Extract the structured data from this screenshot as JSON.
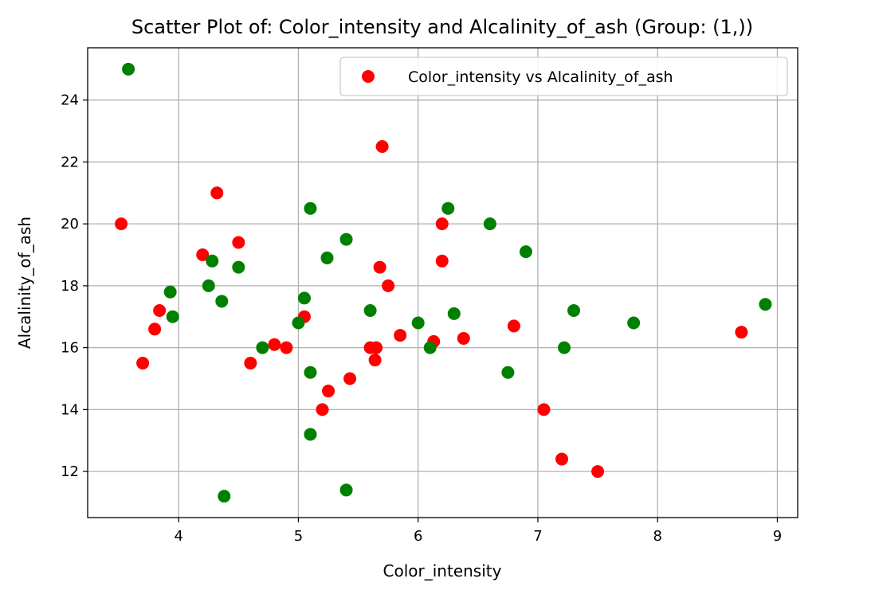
{
  "chart_data": {
    "type": "scatter",
    "title": "Scatter Plot of: Color_intensity and Alcalinity_of_ash (Group: (1,))",
    "xlabel": "Color_intensity",
    "ylabel": "Alcalinity_of_ash",
    "xlim": [
      3.24,
      9.17
    ],
    "ylim": [
      10.51,
      25.69
    ],
    "xticks": [
      4,
      5,
      6,
      7,
      8,
      9
    ],
    "yticks": [
      12,
      14,
      16,
      18,
      20,
      22,
      24
    ],
    "grid": true,
    "legend": {
      "placement": "top-right",
      "entries": [
        {
          "label": "Color_intensity vs Alcalinity_of_ash",
          "color": "#ff0000"
        }
      ]
    },
    "series": [
      {
        "color": "#ff0000",
        "points": [
          [
            3.52,
            20.0
          ],
          [
            3.7,
            15.5
          ],
          [
            3.8,
            16.6
          ],
          [
            3.84,
            17.2
          ],
          [
            4.2,
            19.0
          ],
          [
            4.32,
            21.0
          ],
          [
            4.5,
            19.4
          ],
          [
            4.6,
            15.5
          ],
          [
            4.8,
            16.1
          ],
          [
            4.9,
            16.0
          ],
          [
            5.05,
            17.0
          ],
          [
            5.2,
            14.0
          ],
          [
            5.25,
            14.6
          ],
          [
            5.43,
            15.0
          ],
          [
            5.6,
            16.0
          ],
          [
            5.64,
            15.6
          ],
          [
            5.65,
            16.0
          ],
          [
            5.68,
            18.6
          ],
          [
            5.7,
            22.5
          ],
          [
            5.75,
            18.0
          ],
          [
            5.85,
            16.4
          ],
          [
            6.13,
            16.2
          ],
          [
            6.2,
            18.8
          ],
          [
            6.2,
            20.0
          ],
          [
            6.38,
            16.3
          ],
          [
            6.8,
            16.7
          ],
          [
            7.05,
            14.0
          ],
          [
            7.2,
            12.4
          ],
          [
            7.5,
            12.0
          ],
          [
            8.7,
            16.5
          ]
        ]
      },
      {
        "color": "#008000",
        "points": [
          [
            3.58,
            25.0
          ],
          [
            3.93,
            17.8
          ],
          [
            3.95,
            17.0
          ],
          [
            4.25,
            18.0
          ],
          [
            4.28,
            18.8
          ],
          [
            4.36,
            17.5
          ],
          [
            4.38,
            11.2
          ],
          [
            4.5,
            18.6
          ],
          [
            4.7,
            16.0
          ],
          [
            5.0,
            16.8
          ],
          [
            5.05,
            17.6
          ],
          [
            5.1,
            20.5
          ],
          [
            5.1,
            15.2
          ],
          [
            5.1,
            13.2
          ],
          [
            5.24,
            18.9
          ],
          [
            5.4,
            19.5
          ],
          [
            5.4,
            11.4
          ],
          [
            5.6,
            17.2
          ],
          [
            6.0,
            16.8
          ],
          [
            6.1,
            16.0
          ],
          [
            6.25,
            20.5
          ],
          [
            6.3,
            17.1
          ],
          [
            6.6,
            20.0
          ],
          [
            6.75,
            15.2
          ],
          [
            6.9,
            19.1
          ],
          [
            7.22,
            16.0
          ],
          [
            7.3,
            17.2
          ],
          [
            7.8,
            16.8
          ],
          [
            8.9,
            17.4
          ]
        ]
      }
    ]
  }
}
